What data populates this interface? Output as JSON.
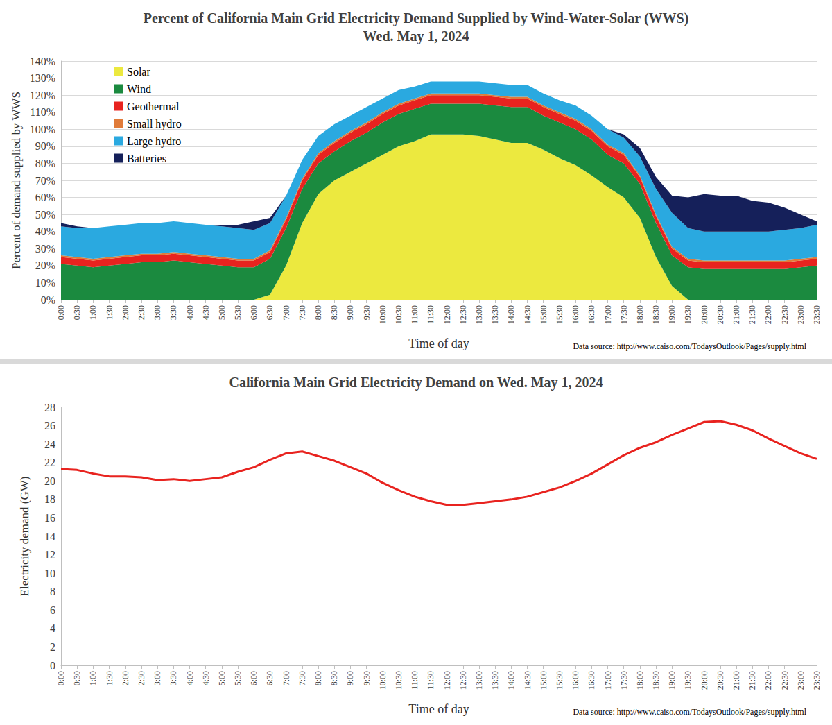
{
  "chart_data": [
    {
      "type": "area",
      "title": "Percent of California Main Grid Electricity Demand Supplied by Wind-Water-Solar (WWS)\nWed. May 1, 2024",
      "x_label": "Time of day",
      "y_label": "Percent of demand supplied by WWS",
      "annotations": [
        "Data source: http://www.caiso.com/TodaysOutlook/Pages/supply.html"
      ],
      "stacked": true,
      "grid": true,
      "legend": "top-left",
      "categories": [
        "0:00",
        "0:30",
        "1:00",
        "1:30",
        "2:00",
        "2:30",
        "3:00",
        "3:30",
        "4:00",
        "4:30",
        "5:00",
        "5:30",
        "6:00",
        "6:30",
        "7:00",
        "7:30",
        "8:00",
        "8:30",
        "9:00",
        "9:30",
        "10:00",
        "10:30",
        "11:00",
        "11:30",
        "12:00",
        "12:30",
        "13:00",
        "13:30",
        "14:00",
        "14:30",
        "15:00",
        "15:30",
        "16:00",
        "16:30",
        "17:00",
        "17:30",
        "18:00",
        "18:30",
        "19:00",
        "19:30",
        "20:00",
        "20:30",
        "21:00",
        "21:30",
        "22:00",
        "22:30",
        "23:00",
        "23:30"
      ],
      "series": [
        {
          "name": "Solar",
          "color": "#ece93f",
          "values": [
            0,
            0,
            0,
            0,
            0,
            0,
            0,
            0,
            0,
            0,
            0,
            0,
            0,
            3,
            20,
            45,
            62,
            70,
            75,
            80,
            85,
            90,
            93,
            97,
            97,
            97,
            96,
            94,
            92,
            92,
            88,
            83,
            79,
            73,
            66,
            60,
            48,
            25,
            8,
            0,
            0,
            0,
            0,
            0,
            0,
            0,
            0,
            0
          ]
        },
        {
          "name": "Wind",
          "color": "#1b8a3f",
          "values": [
            21,
            20,
            19,
            20,
            21,
            22,
            22,
            23,
            22,
            21,
            20,
            19,
            19,
            21,
            22,
            20,
            18,
            17,
            18,
            18,
            19,
            19,
            19,
            18,
            18,
            18,
            19,
            20,
            21,
            21,
            20,
            21,
            21,
            21,
            19,
            20,
            20,
            20,
            18,
            19,
            18,
            18,
            18,
            18,
            18,
            18,
            19,
            20
          ]
        },
        {
          "name": "Geothermal",
          "color": "#e8231f",
          "values": [
            4,
            4,
            4,
            4,
            4,
            4,
            4,
            4,
            4,
            4,
            4,
            4,
            4,
            4,
            5,
            5,
            5,
            5,
            5,
            5,
            5,
            5,
            5,
            5,
            5,
            5,
            5,
            5,
            5,
            5,
            5,
            5,
            5,
            5,
            5,
            5,
            4,
            4,
            4,
            4,
            4,
            4,
            4,
            4,
            4,
            4,
            4,
            4
          ]
        },
        {
          "name": "Small hydro",
          "color": "#e07b39",
          "values": [
            1,
            1,
            1,
            1,
            1,
            1,
            1,
            1,
            1,
            1,
            1,
            1,
            1,
            1,
            1,
            1,
            1,
            1,
            1,
            1,
            1,
            1,
            1,
            1,
            1,
            1,
            1,
            1,
            1,
            1,
            1,
            1,
            1,
            1,
            1,
            1,
            1,
            1,
            1,
            1,
            1,
            1,
            1,
            1,
            1,
            1,
            1,
            1
          ]
        },
        {
          "name": "Large hydro",
          "color": "#2aa9e0",
          "values": [
            17,
            17,
            18,
            18,
            18,
            18,
            18,
            18,
            18,
            18,
            18,
            18,
            17,
            16,
            13,
            11,
            10,
            10,
            9,
            9,
            8,
            8,
            7,
            7,
            7,
            7,
            7,
            7,
            7,
            7,
            7,
            7,
            8,
            8,
            9,
            9,
            11,
            15,
            20,
            18,
            17,
            17,
            17,
            17,
            17,
            18,
            18,
            19
          ]
        },
        {
          "name": "Batteries",
          "color": "#15205a",
          "values": [
            2,
            1,
            0,
            0,
            0,
            0,
            0,
            0,
            0,
            0,
            1,
            2,
            5,
            3,
            0,
            0,
            0,
            0,
            0,
            0,
            0,
            0,
            0,
            0,
            0,
            0,
            0,
            0,
            0,
            0,
            0,
            0,
            0,
            0,
            0,
            2,
            5,
            7,
            10,
            18,
            22,
            21,
            21,
            18,
            17,
            13,
            8,
            2
          ]
        }
      ],
      "ylim": [
        0,
        140
      ],
      "yticks": [
        {
          "value": 0,
          "label": "0%"
        },
        {
          "value": 10,
          "label": "10%"
        },
        {
          "value": 20,
          "label": "20%"
        },
        {
          "value": 30,
          "label": "30%"
        },
        {
          "value": 40,
          "label": "40%"
        },
        {
          "value": 50,
          "label": "50%"
        },
        {
          "value": 60,
          "label": "60%"
        },
        {
          "value": 70,
          "label": "70%"
        },
        {
          "value": 80,
          "label": "80%"
        },
        {
          "value": 90,
          "label": "90%"
        },
        {
          "value": 100,
          "label": "100%"
        },
        {
          "value": 110,
          "label": "110%"
        },
        {
          "value": 120,
          "label": "120%"
        },
        {
          "value": 130,
          "label": "130%"
        },
        {
          "value": 140,
          "label": "140%"
        }
      ]
    },
    {
      "type": "line",
      "title": "California Main Grid Electricity Demand on Wed. May 1, 2024",
      "x_label": "Time of day",
      "y_label": "Electricity demand (GW)",
      "annotations": [
        "Data source: http://www.caiso.com/TodaysOutlook/Pages/supply.html"
      ],
      "grid": false,
      "color": "#e8231f",
      "categories": [
        "0:00",
        "0:30",
        "1:00",
        "1:30",
        "2:00",
        "2:30",
        "3:00",
        "3:30",
        "4:00",
        "4:30",
        "5:00",
        "5:30",
        "6:00",
        "6:30",
        "7:00",
        "7:30",
        "8:00",
        "8:30",
        "9:00",
        "9:30",
        "10:00",
        "10:30",
        "11:00",
        "11:30",
        "12:00",
        "12:30",
        "13:00",
        "13:30",
        "14:00",
        "14:30",
        "15:00",
        "15:30",
        "16:00",
        "16:30",
        "17:00",
        "17:30",
        "18:00",
        "18:30",
        "19:00",
        "19:30",
        "20:00",
        "20:30",
        "21:00",
        "21:30",
        "22:00",
        "22:30",
        "23:00",
        "23:30"
      ],
      "values": [
        21.3,
        21.2,
        20.8,
        20.5,
        20.5,
        20.4,
        20.1,
        20.2,
        20.0,
        20.2,
        20.4,
        21.0,
        21.5,
        22.3,
        23.0,
        23.2,
        22.7,
        22.2,
        21.5,
        20.8,
        19.8,
        19.0,
        18.3,
        17.8,
        17.4,
        17.4,
        17.6,
        17.8,
        18.0,
        18.3,
        18.8,
        19.3,
        20.0,
        20.8,
        21.8,
        22.8,
        23.6,
        24.2,
        25.0,
        25.7,
        26.4,
        26.5,
        26.1,
        25.5,
        24.6,
        23.8,
        23.0,
        22.4
      ],
      "ylim": [
        0,
        28
      ],
      "yticks": [
        0,
        2,
        4,
        6,
        8,
        10,
        12,
        14,
        16,
        18,
        20,
        22,
        24,
        26,
        28
      ]
    }
  ]
}
